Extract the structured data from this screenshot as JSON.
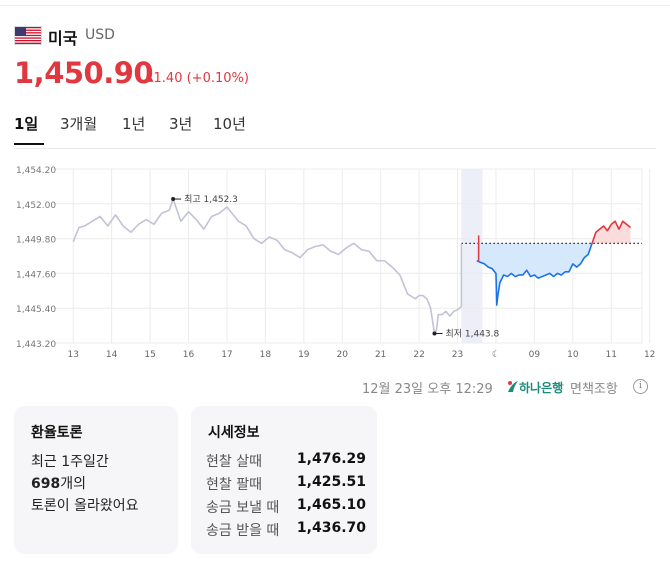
{
  "header": {
    "country": "미국",
    "currency": "USD",
    "price": "1,450.90",
    "change": "▴1.40 (+0.10%)",
    "up_color": "#e0383e",
    "down_color": "#1a73e8"
  },
  "tabs": [
    "1일",
    "3개월",
    "1년",
    "3년",
    "10년"
  ],
  "active_tab": "1일",
  "chart_data": {
    "type": "line",
    "ylim": [
      1443.2,
      1454.2
    ],
    "y_ticks": [
      "1,454.20",
      "1,452.00",
      "1,449.80",
      "1,447.60",
      "1,445.40",
      "1,443.20"
    ],
    "x_ticks": [
      "13",
      "14",
      "15",
      "16",
      "17",
      "18",
      "19",
      "20",
      "21",
      "22",
      "23",
      "☾",
      "09",
      "10",
      "11",
      "12"
    ],
    "grid": true,
    "baseline": 1449.5,
    "annotations": {
      "high_label": "최고 1,452.3",
      "low_label": "최저 1,443.8"
    },
    "series": [
      {
        "color": "#c2c3d6",
        "x": [
          13,
          13.15,
          13.3,
          13.5,
          13.7,
          13.9,
          14.1,
          14.3,
          14.5,
          14.7,
          14.9,
          15.1,
          15.3,
          15.5,
          15.6,
          15.8,
          16.0,
          16.2,
          16.4,
          16.6,
          16.8,
          17.0,
          17.1,
          17.3,
          17.5,
          17.7,
          17.9,
          18.1,
          18.3,
          18.5,
          18.7,
          18.9,
          19.1,
          19.3,
          19.5,
          19.7,
          19.9,
          20.1,
          20.3,
          20.5,
          20.7,
          20.9,
          21.1,
          21.3,
          21.5,
          21.7,
          21.9,
          22.0,
          22.1,
          22.2,
          22.3,
          22.4,
          22.45,
          22.5,
          22.6,
          22.7,
          22.8,
          22.9,
          23.0,
          23.1
        ],
        "y": [
          1449.6,
          1450.5,
          1450.6,
          1450.9,
          1451.2,
          1450.6,
          1451.3,
          1450.6,
          1450.2,
          1450.7,
          1451.0,
          1450.7,
          1451.4,
          1451.6,
          1452.3,
          1450.9,
          1451.5,
          1451.0,
          1450.4,
          1451.2,
          1451.4,
          1451.8,
          1451.5,
          1450.9,
          1450.6,
          1449.8,
          1449.5,
          1449.9,
          1449.7,
          1449.1,
          1448.9,
          1448.6,
          1449.1,
          1449.3,
          1449.4,
          1449.0,
          1448.8,
          1449.2,
          1449.5,
          1449.1,
          1449.0,
          1448.4,
          1448.4,
          1448.0,
          1447.5,
          1446.3,
          1446.0,
          1446.2,
          1446.2,
          1446.0,
          1445.4,
          1443.8,
          1444.0,
          1445.0,
          1445.0,
          1445.2,
          1444.9,
          1445.2,
          1445.3,
          1445.5
        ]
      },
      {
        "color": "#1a73e8",
        "x": [
          23.5,
          23.6,
          23.7,
          23.8,
          23.9,
          24.0,
          24.02,
          24.05,
          24.1,
          24.2,
          24.3,
          24.4,
          24.5,
          24.6,
          24.7,
          24.8,
          24.9,
          25.0,
          25.1,
          25.2,
          25.3,
          25.4,
          25.5,
          25.6,
          25.7,
          25.8,
          25.9,
          26.0,
          26.1,
          26.2,
          26.3,
          26.4,
          26.5
        ],
        "y": [
          1448.4,
          1448.3,
          1448.2,
          1448.0,
          1447.9,
          1447.6,
          1445.6,
          1446.2,
          1447.0,
          1447.5,
          1447.4,
          1447.6,
          1447.4,
          1447.5,
          1447.5,
          1447.8,
          1447.4,
          1447.5,
          1447.3,
          1447.4,
          1447.5,
          1447.6,
          1447.4,
          1447.6,
          1447.5,
          1447.7,
          1447.7,
          1448.2,
          1448.0,
          1448.2,
          1448.6,
          1448.8,
          1449.5
        ]
      },
      {
        "color": "#e0383e",
        "x": [
          26.5,
          26.6,
          26.7,
          26.8,
          26.9,
          27.0,
          27.1,
          27.2,
          27.3,
          27.4,
          27.5
        ],
        "y": [
          1449.5,
          1450.2,
          1450.4,
          1450.6,
          1450.3,
          1450.7,
          1450.9,
          1450.4,
          1450.9,
          1450.7,
          1450.5
        ]
      }
    ]
  },
  "footer": {
    "timestamp": "12월 23일 오후 12:29",
    "bank": "하나은행",
    "separator": "·",
    "disclaimer": "면책조항",
    "info_glyph": "i"
  },
  "debate": {
    "title": "환율토론",
    "line1": "최근 1주일간",
    "count": "698",
    "count_suffix": "개의",
    "line3": "토론이 올라왔어요"
  },
  "quotes": {
    "title": "시세정보",
    "rows": [
      {
        "label": "현찰 살때",
        "value": "1,476.29"
      },
      {
        "label": "현찰 팔때",
        "value": "1,425.51"
      },
      {
        "label": "송금 보낼 때",
        "value": "1,465.10"
      },
      {
        "label": "송금 받을 때",
        "value": "1,436.70"
      }
    ]
  }
}
